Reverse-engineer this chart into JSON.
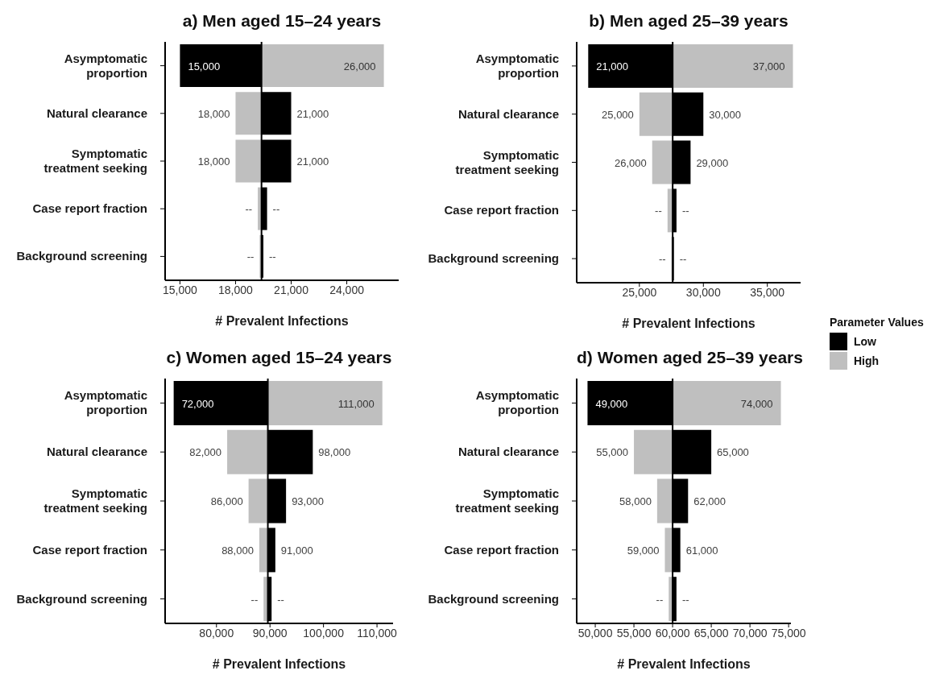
{
  "chart_data": [
    {
      "type": "bar",
      "orientation": "horizontal",
      "title": "a) Men aged 15–24 years",
      "xlabel": "# Prevalent Infections",
      "categories": [
        "Asymptomatic proportion",
        "Natural clearance",
        "Symptomatic treatment seeking",
        "Case report fraction",
        "Background screening"
      ],
      "series": [
        {
          "color": "#000000",
          "base": [
            19400,
            19400,
            19400,
            19400,
            19400
          ],
          "values": [
            -4400,
            1600,
            1600,
            300,
            100
          ],
          "value_labels": [
            "15,000",
            "21,000",
            "21,000",
            "--",
            "--"
          ]
        },
        {
          "color": "#bfbfbf",
          "base": [
            19400,
            19400,
            19400,
            19400,
            19400
          ],
          "values": [
            6600,
            -1400,
            -1400,
            -200,
            -100
          ],
          "value_labels": [
            "26,000",
            "18,000",
            "18,000",
            "--",
            "--"
          ]
        }
      ],
      "xlim": [
        14200,
        26800
      ],
      "xticks": [
        {
          "value": 15000,
          "label": "15,000"
        },
        {
          "value": 18000,
          "label": "18,000"
        },
        {
          "value": 21000,
          "label": "21,000"
        },
        {
          "value": 24000,
          "label": "24,000"
        }
      ],
      "ref_lines": [
        {
          "axis": "x",
          "value": 19400,
          "color": "#000000"
        }
      ]
    },
    {
      "type": "bar",
      "orientation": "horizontal",
      "title": "b) Men aged 25–39 years",
      "xlabel": "# Prevalent Infections",
      "categories": [
        "Asymptomatic proportion",
        "Natural clearance",
        "Symptomatic treatment seeking",
        "Case report fraction",
        "Background screening"
      ],
      "series": [
        {
          "name": "Low",
          "color": "#000000",
          "base": [
            27600,
            27600,
            27600,
            27600,
            27600
          ],
          "values": [
            -6600,
            2400,
            1400,
            300,
            100
          ],
          "value_labels": [
            "21,000",
            "30,000",
            "29,000",
            "--",
            "--"
          ]
        },
        {
          "name": "High",
          "color": "#bfbfbf",
          "base": [
            27600,
            27600,
            27600,
            27600,
            27600
          ],
          "values": [
            9400,
            -2600,
            -1600,
            -400,
            -100
          ],
          "value_labels": [
            "37,000",
            "25,000",
            "26,000",
            "--",
            "--"
          ]
        }
      ],
      "xlim": [
        20100,
        37600
      ],
      "xticks": [
        {
          "value": 25000,
          "label": "25,000"
        },
        {
          "value": 30000,
          "label": "30,000"
        },
        {
          "value": 35000,
          "label": "35,000"
        }
      ],
      "ref_lines": [
        {
          "axis": "x",
          "value": 27600,
          "color": "#000000"
        }
      ],
      "legend": "right",
      "legend_title": "Parameter Values"
    },
    {
      "type": "bar",
      "orientation": "horizontal",
      "title": "c) Women aged 15–24 years",
      "xlabel": "# Prevalent Infections",
      "categories": [
        "Asymptomatic proportion",
        "Natural clearance",
        "Symptomatic treatment seeking",
        "Case report fraction",
        "Background screening"
      ],
      "series": [
        {
          "color": "#000000",
          "base": [
            89600,
            89600,
            89600,
            89600,
            89600
          ],
          "values": [
            -17600,
            8400,
            3400,
            1400,
            700
          ],
          "value_labels": [
            "72,000",
            "98,000",
            "93,000",
            "91,000",
            "--"
          ]
        },
        {
          "color": "#bfbfbf",
          "base": [
            89600,
            89600,
            89600,
            89600,
            89600
          ],
          "values": [
            21400,
            -7600,
            -3600,
            -1600,
            -800
          ],
          "value_labels": [
            "111,000",
            "82,000",
            "86,000",
            "88,000",
            "--"
          ]
        }
      ],
      "xlim": [
        70400,
        113000
      ],
      "xticks": [
        {
          "value": 80000,
          "label": "80,000"
        },
        {
          "value": 90000,
          "label": "90,000"
        },
        {
          "value": 100000,
          "label": "100,000"
        },
        {
          "value": 110000,
          "label": "110,000"
        }
      ],
      "ref_lines": [
        {
          "axis": "x",
          "value": 89600,
          "color": "#000000"
        }
      ]
    },
    {
      "type": "bar",
      "orientation": "horizontal",
      "title": "d) Women aged 25–39 years",
      "xlabel": "# Prevalent Infections",
      "categories": [
        "Asymptomatic proportion",
        "Natural clearance",
        "Symptomatic treatment seeking",
        "Case report fraction",
        "Background screening"
      ],
      "series": [
        {
          "color": "#000000",
          "base": [
            60000,
            60000,
            60000,
            60000,
            60000
          ],
          "values": [
            -11000,
            5000,
            2000,
            1000,
            500
          ],
          "value_labels": [
            "49,000",
            "65,000",
            "62,000",
            "61,000",
            "--"
          ]
        },
        {
          "color": "#bfbfbf",
          "base": [
            60000,
            60000,
            60000,
            60000,
            60000
          ],
          "values": [
            14000,
            -5000,
            -2000,
            -1000,
            -500
          ],
          "value_labels": [
            "74,000",
            "55,000",
            "58,000",
            "59,000",
            "--"
          ]
        }
      ],
      "xlim": [
        47600,
        75300
      ],
      "xticks": [
        {
          "value": 50000,
          "label": "50,000"
        },
        {
          "value": 55000,
          "label": "55,000"
        },
        {
          "value": 60000,
          "label": "60,000"
        },
        {
          "value": 65000,
          "label": "65,000"
        },
        {
          "value": 70000,
          "label": "70,000"
        },
        {
          "value": 75000,
          "label": "75,000"
        }
      ],
      "ref_lines": [
        {
          "axis": "x",
          "value": 60000,
          "color": "#000000"
        }
      ]
    }
  ]
}
